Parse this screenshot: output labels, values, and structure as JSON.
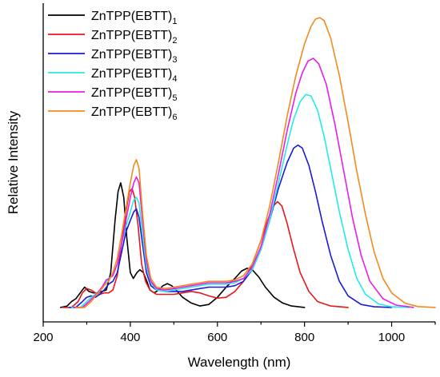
{
  "chart_data": {
    "type": "line",
    "title": "",
    "xlabel": "Wavelength (nm)",
    "ylabel": "Relative Intensity",
    "xlim": [
      200,
      1100
    ],
    "ylim": [
      -0.05,
      1.05
    ],
    "x_ticks": [
      200,
      400,
      600,
      800,
      1000
    ],
    "x_tick_labels": [
      "200",
      "400",
      "600",
      "800",
      "1000"
    ],
    "y_ticks_shown": false,
    "grid": false,
    "legend_position": "top-left",
    "series": [
      {
        "name_base": "ZnTPP(EBTT)",
        "name_sub": "1",
        "color": "#000000",
        "points": [
          [
            240,
            0
          ],
          [
            255,
            0.005
          ],
          [
            265,
            0.02
          ],
          [
            275,
            0.03
          ],
          [
            285,
            0.05
          ],
          [
            295,
            0.07
          ],
          [
            305,
            0.055
          ],
          [
            315,
            0.05
          ],
          [
            325,
            0.05
          ],
          [
            335,
            0.055
          ],
          [
            345,
            0.06
          ],
          [
            355,
            0.12
          ],
          [
            365,
            0.3
          ],
          [
            372,
            0.4
          ],
          [
            378,
            0.43
          ],
          [
            385,
            0.38
          ],
          [
            392,
            0.24
          ],
          [
            400,
            0.12
          ],
          [
            407,
            0.1
          ],
          [
            415,
            0.12
          ],
          [
            422,
            0.13
          ],
          [
            430,
            0.12
          ],
          [
            438,
            0.09
          ],
          [
            445,
            0.06
          ],
          [
            455,
            0.05
          ],
          [
            465,
            0.06
          ],
          [
            475,
            0.075
          ],
          [
            485,
            0.082
          ],
          [
            495,
            0.075
          ],
          [
            505,
            0.06
          ],
          [
            520,
            0.035
          ],
          [
            540,
            0.015
          ],
          [
            560,
            0.005
          ],
          [
            580,
            0.01
          ],
          [
            600,
            0.035
          ],
          [
            620,
            0.07
          ],
          [
            640,
            0.1
          ],
          [
            655,
            0.125
          ],
          [
            668,
            0.135
          ],
          [
            680,
            0.13
          ],
          [
            695,
            0.105
          ],
          [
            710,
            0.07
          ],
          [
            730,
            0.035
          ],
          [
            750,
            0.015
          ],
          [
            770,
            0.005
          ],
          [
            800,
            0
          ]
        ]
      },
      {
        "name_base": "ZnTPP(EBTT)",
        "name_sub": "2",
        "color": "#e8161b",
        "points": [
          [
            245,
            0
          ],
          [
            265,
            0
          ],
          [
            280,
            0.02
          ],
          [
            290,
            0.05
          ],
          [
            300,
            0.065
          ],
          [
            310,
            0.06
          ],
          [
            320,
            0.05
          ],
          [
            330,
            0.045
          ],
          [
            340,
            0.05
          ],
          [
            350,
            0.05
          ],
          [
            360,
            0.06
          ],
          [
            370,
            0.11
          ],
          [
            380,
            0.22
          ],
          [
            390,
            0.33
          ],
          [
            398,
            0.4
          ],
          [
            404,
            0.41
          ],
          [
            410,
            0.38
          ],
          [
            418,
            0.28
          ],
          [
            426,
            0.15
          ],
          [
            435,
            0.09
          ],
          [
            445,
            0.06
          ],
          [
            460,
            0.045
          ],
          [
            480,
            0.045
          ],
          [
            500,
            0.045
          ],
          [
            520,
            0.05
          ],
          [
            540,
            0.055
          ],
          [
            560,
            0.05
          ],
          [
            580,
            0.04
          ],
          [
            600,
            0.032
          ],
          [
            620,
            0.035
          ],
          [
            640,
            0.055
          ],
          [
            660,
            0.09
          ],
          [
            680,
            0.15
          ],
          [
            700,
            0.23
          ],
          [
            715,
            0.3
          ],
          [
            728,
            0.35
          ],
          [
            738,
            0.365
          ],
          [
            748,
            0.35
          ],
          [
            760,
            0.29
          ],
          [
            775,
            0.2
          ],
          [
            790,
            0.12
          ],
          [
            810,
            0.055
          ],
          [
            830,
            0.02
          ],
          [
            860,
            0.005
          ],
          [
            900,
            0
          ]
        ]
      },
      {
        "name_base": "ZnTPP(EBTT)",
        "name_sub": "3",
        "color": "#1a1ad8",
        "points": [
          [
            260,
            0
          ],
          [
            275,
            0
          ],
          [
            290,
            0.02
          ],
          [
            300,
            0.035
          ],
          [
            310,
            0.04
          ],
          [
            320,
            0.035
          ],
          [
            330,
            0.045
          ],
          [
            340,
            0.06
          ],
          [
            350,
            0.08
          ],
          [
            360,
            0.09
          ],
          [
            370,
            0.12
          ],
          [
            380,
            0.19
          ],
          [
            390,
            0.26
          ],
          [
            400,
            0.3
          ],
          [
            408,
            0.33
          ],
          [
            414,
            0.34
          ],
          [
            420,
            0.31
          ],
          [
            428,
            0.22
          ],
          [
            437,
            0.12
          ],
          [
            447,
            0.075
          ],
          [
            460,
            0.06
          ],
          [
            480,
            0.055
          ],
          [
            500,
            0.055
          ],
          [
            520,
            0.055
          ],
          [
            540,
            0.06
          ],
          [
            560,
            0.065
          ],
          [
            580,
            0.07
          ],
          [
            600,
            0.07
          ],
          [
            620,
            0.07
          ],
          [
            640,
            0.075
          ],
          [
            660,
            0.09
          ],
          [
            680,
            0.13
          ],
          [
            700,
            0.2
          ],
          [
            720,
            0.3
          ],
          [
            740,
            0.41
          ],
          [
            760,
            0.5
          ],
          [
            775,
            0.55
          ],
          [
            785,
            0.56
          ],
          [
            795,
            0.55
          ],
          [
            810,
            0.49
          ],
          [
            825,
            0.4
          ],
          [
            840,
            0.3
          ],
          [
            860,
            0.18
          ],
          [
            880,
            0.09
          ],
          [
            900,
            0.04
          ],
          [
            930,
            0.01
          ],
          [
            960,
            0.002
          ],
          [
            1000,
            0
          ]
        ]
      },
      {
        "name_base": "ZnTPP(EBTT)",
        "name_sub": "4",
        "color": "#22eaea",
        "points": [
          [
            265,
            0
          ],
          [
            285,
            0
          ],
          [
            300,
            0.02
          ],
          [
            310,
            0.035
          ],
          [
            320,
            0.045
          ],
          [
            330,
            0.06
          ],
          [
            340,
            0.08
          ],
          [
            350,
            0.1
          ],
          [
            360,
            0.11
          ],
          [
            370,
            0.15
          ],
          [
            380,
            0.22
          ],
          [
            390,
            0.28
          ],
          [
            400,
            0.33
          ],
          [
            408,
            0.37
          ],
          [
            414,
            0.38
          ],
          [
            420,
            0.36
          ],
          [
            428,
            0.25
          ],
          [
            437,
            0.14
          ],
          [
            447,
            0.085
          ],
          [
            460,
            0.06
          ],
          [
            480,
            0.055
          ],
          [
            500,
            0.06
          ],
          [
            520,
            0.065
          ],
          [
            540,
            0.07
          ],
          [
            560,
            0.075
          ],
          [
            580,
            0.08
          ],
          [
            600,
            0.08
          ],
          [
            620,
            0.08
          ],
          [
            640,
            0.085
          ],
          [
            660,
            0.1
          ],
          [
            680,
            0.13
          ],
          [
            700,
            0.2
          ],
          [
            720,
            0.3
          ],
          [
            740,
            0.43
          ],
          [
            760,
            0.56
          ],
          [
            775,
            0.65
          ],
          [
            790,
            0.71
          ],
          [
            803,
            0.735
          ],
          [
            815,
            0.73
          ],
          [
            830,
            0.68
          ],
          [
            845,
            0.59
          ],
          [
            860,
            0.48
          ],
          [
            880,
            0.33
          ],
          [
            900,
            0.2
          ],
          [
            920,
            0.1
          ],
          [
            940,
            0.045
          ],
          [
            970,
            0.012
          ],
          [
            1000,
            0.002
          ],
          [
            1040,
            0
          ]
        ]
      },
      {
        "name_base": "ZnTPP(EBTT)",
        "name_sub": "5",
        "color": "#e81ee8",
        "points": [
          [
            270,
            0
          ],
          [
            290,
            0
          ],
          [
            305,
            0.02
          ],
          [
            315,
            0.035
          ],
          [
            325,
            0.05
          ],
          [
            335,
            0.07
          ],
          [
            345,
            0.095
          ],
          [
            352,
            0.1
          ],
          [
            360,
            0.11
          ],
          [
            370,
            0.15
          ],
          [
            380,
            0.22
          ],
          [
            390,
            0.3
          ],
          [
            400,
            0.38
          ],
          [
            408,
            0.43
          ],
          [
            414,
            0.45
          ],
          [
            420,
            0.43
          ],
          [
            428,
            0.3
          ],
          [
            437,
            0.16
          ],
          [
            447,
            0.09
          ],
          [
            460,
            0.065
          ],
          [
            480,
            0.06
          ],
          [
            500,
            0.065
          ],
          [
            520,
            0.07
          ],
          [
            540,
            0.075
          ],
          [
            560,
            0.08
          ],
          [
            580,
            0.085
          ],
          [
            600,
            0.085
          ],
          [
            620,
            0.085
          ],
          [
            640,
            0.09
          ],
          [
            660,
            0.1
          ],
          [
            680,
            0.14
          ],
          [
            700,
            0.21
          ],
          [
            720,
            0.32
          ],
          [
            740,
            0.46
          ],
          [
            760,
            0.61
          ],
          [
            780,
            0.74
          ],
          [
            795,
            0.81
          ],
          [
            808,
            0.85
          ],
          [
            820,
            0.86
          ],
          [
            833,
            0.84
          ],
          [
            850,
            0.77
          ],
          [
            870,
            0.63
          ],
          [
            890,
            0.47
          ],
          [
            910,
            0.31
          ],
          [
            930,
            0.18
          ],
          [
            950,
            0.09
          ],
          [
            980,
            0.03
          ],
          [
            1010,
            0.008
          ],
          [
            1050,
            0
          ]
        ]
      },
      {
        "name_base": "ZnTPP(EBTT)",
        "name_sub": "6",
        "color": "#f08b1c",
        "points": [
          [
            275,
            0
          ],
          [
            295,
            0
          ],
          [
            310,
            0.02
          ],
          [
            320,
            0.04
          ],
          [
            330,
            0.055
          ],
          [
            340,
            0.075
          ],
          [
            350,
            0.09
          ],
          [
            360,
            0.12
          ],
          [
            370,
            0.17
          ],
          [
            380,
            0.25
          ],
          [
            390,
            0.34
          ],
          [
            400,
            0.43
          ],
          [
            408,
            0.49
          ],
          [
            414,
            0.51
          ],
          [
            420,
            0.48
          ],
          [
            428,
            0.33
          ],
          [
            437,
            0.18
          ],
          [
            447,
            0.1
          ],
          [
            460,
            0.07
          ],
          [
            480,
            0.065
          ],
          [
            500,
            0.07
          ],
          [
            520,
            0.075
          ],
          [
            540,
            0.08
          ],
          [
            560,
            0.085
          ],
          [
            580,
            0.09
          ],
          [
            600,
            0.09
          ],
          [
            620,
            0.09
          ],
          [
            640,
            0.095
          ],
          [
            660,
            0.11
          ],
          [
            680,
            0.15
          ],
          [
            700,
            0.23
          ],
          [
            720,
            0.35
          ],
          [
            740,
            0.5
          ],
          [
            760,
            0.66
          ],
          [
            780,
            0.8
          ],
          [
            800,
            0.91
          ],
          [
            815,
            0.97
          ],
          [
            825,
            0.995
          ],
          [
            835,
            1.0
          ],
          [
            845,
            0.99
          ],
          [
            860,
            0.93
          ],
          [
            880,
            0.8
          ],
          [
            900,
            0.64
          ],
          [
            920,
            0.47
          ],
          [
            940,
            0.32
          ],
          [
            960,
            0.19
          ],
          [
            980,
            0.1
          ],
          [
            1000,
            0.05
          ],
          [
            1030,
            0.015
          ],
          [
            1060,
            0.003
          ],
          [
            1100,
            0
          ]
        ]
      }
    ]
  }
}
